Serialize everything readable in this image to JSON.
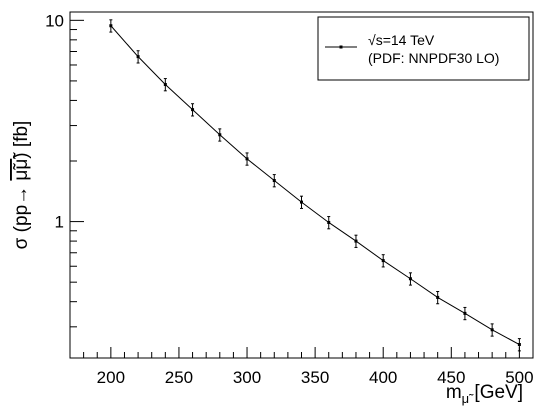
{
  "chart_data": {
    "type": "line",
    "ylabel_prefix": "σ (pp→ ",
    "ylabel_particles": "μ̃μ̃",
    "ylabel_suffix": ") [fb]",
    "xlabel_main": "m",
    "xlabel_sub": "μ̃",
    "xlabel_unit": " [GeV]",
    "xlim": [
      170,
      510
    ],
    "ylim": [
      0.21,
      11
    ],
    "y_scale": "log",
    "x_ticks": [
      200,
      250,
      300,
      350,
      400,
      450,
      500
    ],
    "y_ticks": [
      {
        "value": 10,
        "label": "10"
      },
      {
        "value": 1,
        "label": "1"
      }
    ],
    "legend": {
      "position": "top-right",
      "line1_sqrt": "√",
      "line1_rest": "s=14 TeV",
      "line2": "(PDF: NNPDF30 LO)"
    },
    "series": [
      {
        "x": [
          200,
          220,
          240,
          260,
          280,
          300,
          320,
          340,
          360,
          380,
          400,
          420,
          440,
          460,
          480,
          500
        ],
        "y": [
          9.4,
          6.6,
          4.8,
          3.6,
          2.7,
          2.05,
          1.6,
          1.25,
          0.99,
          0.8,
          0.64,
          0.52,
          0.42,
          0.35,
          0.29,
          0.245
        ],
        "err_rel": 0.07
      }
    ]
  }
}
